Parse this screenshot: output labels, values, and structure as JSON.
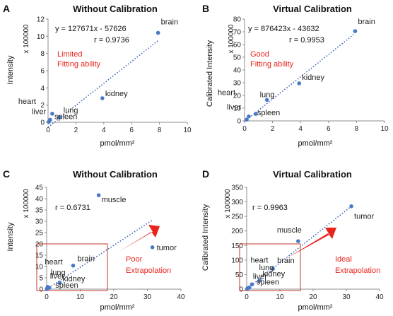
{
  "chart_data": [
    {
      "type": "scatter",
      "panel_label": "A",
      "title": "Without Calibration",
      "xlabel": "pmol/mm²",
      "ylabel": "Intensity",
      "y_unit": "x 100000",
      "xlim": [
        0,
        10
      ],
      "ylim": [
        0,
        12
      ],
      "xticks": [
        0,
        2,
        4,
        6,
        8,
        10
      ],
      "yticks": [
        0,
        2,
        4,
        6,
        8,
        10,
        12
      ],
      "points": [
        {
          "label": "brain",
          "x": 7.9,
          "y": 10.4
        },
        {
          "label": "kidney",
          "x": 3.9,
          "y": 2.8
        },
        {
          "label": "heart",
          "x": 0.3,
          "y": 1.0
        },
        {
          "label": "lung",
          "x": 0.8,
          "y": 0.6
        },
        {
          "label": "liver",
          "x": 0.15,
          "y": 0.3
        },
        {
          "label": "spleen",
          "x": 0.05,
          "y": 0.05
        }
      ],
      "trendline": {
        "x": [
          0,
          7.9
        ],
        "y": [
          -0.58,
          9.5
        ]
      },
      "equation": "y = 127671x - 57626",
      "r": "r = 0.9736",
      "note": [
        "Limited",
        "Fitting ability"
      ]
    },
    {
      "type": "scatter",
      "panel_label": "B",
      "title": "Virtual Calibration",
      "xlabel": "pmol/mm²",
      "ylabel": "Calibrated Intensity",
      "y_unit": "x 100000",
      "xlim": [
        0,
        10
      ],
      "ylim": [
        0,
        80
      ],
      "xticks": [
        0,
        2,
        4,
        6,
        8,
        10
      ],
      "yticks": [
        0,
        10,
        20,
        30,
        40,
        50,
        60,
        70,
        80
      ],
      "points": [
        {
          "label": "brain",
          "x": 7.9,
          "y": 70.5
        },
        {
          "label": "kidney",
          "x": 3.9,
          "y": 29.5
        },
        {
          "label": "heart",
          "x": 0.3,
          "y": 3.5
        },
        {
          "label": "lung",
          "x": 1.6,
          "y": 16.5
        },
        {
          "label": "liver",
          "x": 0.15,
          "y": 1.0
        },
        {
          "label": "spleen",
          "x": 0.8,
          "y": 5.5
        }
      ],
      "trendline": {
        "x": [
          0,
          7.9
        ],
        "y": [
          -0.44,
          68.8
        ]
      },
      "equation": "y = 876423x - 43632",
      "r": "r = 0.9953",
      "note": [
        "Good",
        "Fitting ability"
      ]
    },
    {
      "type": "scatter",
      "panel_label": "C",
      "title": "Without Calibration",
      "xlabel": "pmol/mm²",
      "ylabel": "Intensity",
      "y_unit": "x 100000",
      "xlim": [
        0,
        40
      ],
      "ylim": [
        0,
        45
      ],
      "xticks": [
        0,
        10,
        20,
        30,
        40
      ],
      "yticks": [
        0,
        5,
        10,
        15,
        20,
        25,
        30,
        35,
        40,
        45
      ],
      "points": [
        {
          "label": "muscle",
          "x": 15.5,
          "y": 41.5
        },
        {
          "label": "tumor",
          "x": 31.5,
          "y": 18.5
        },
        {
          "label": "brain",
          "x": 7.9,
          "y": 10.4
        },
        {
          "label": "kidney",
          "x": 3.9,
          "y": 2.8
        },
        {
          "label": "heart",
          "x": 0.3,
          "y": 1.0
        },
        {
          "label": "lung",
          "x": 0.8,
          "y": 0.6
        },
        {
          "label": "liver",
          "x": 0.15,
          "y": 0.3
        },
        {
          "label": "spleen",
          "x": 0.05,
          "y": 0.05
        }
      ],
      "trendline": {
        "x": [
          0,
          31.5
        ],
        "y": [
          0,
          30.5
        ]
      },
      "r": "r = 0.6731",
      "note": [
        "Poor",
        "Extrapolation"
      ]
    },
    {
      "type": "scatter",
      "panel_label": "D",
      "title": "Virtual Calibration",
      "xlabel": "pmol/mm²",
      "ylabel": "Calibrated Intensity",
      "y_unit": "x 100000",
      "xlim": [
        0,
        40
      ],
      "ylim": [
        0,
        350
      ],
      "xticks": [
        0,
        10,
        20,
        30,
        40
      ],
      "yticks": [
        0,
        50,
        100,
        150,
        200,
        250,
        300,
        350
      ],
      "points": [
        {
          "label": "tumor",
          "x": 31.5,
          "y": 285
        },
        {
          "label": "muscle",
          "x": 15.5,
          "y": 165
        },
        {
          "label": "brain",
          "x": 7.9,
          "y": 70.5
        },
        {
          "label": "kidney",
          "x": 3.9,
          "y": 29.5
        },
        {
          "label": "heart",
          "x": 0.3,
          "y": 3.5
        },
        {
          "label": "lung",
          "x": 1.6,
          "y": 16.5
        },
        {
          "label": "liver",
          "x": 0.15,
          "y": 1.0
        },
        {
          "label": "spleen",
          "x": 0.8,
          "y": 5.5
        }
      ],
      "trendline": {
        "x": [
          0,
          31.5
        ],
        "y": [
          0,
          285
        ]
      },
      "r": "r = 0.9963",
      "note": [
        "Ideal",
        "Extrapolation"
      ]
    }
  ],
  "colors": {
    "point": "#4a78c8",
    "trendline": "#3a64b8",
    "note": "#e8241c",
    "arrow": "#e8241c",
    "zoom_box": "#c0392b",
    "axis": "#8c8c8c"
  }
}
